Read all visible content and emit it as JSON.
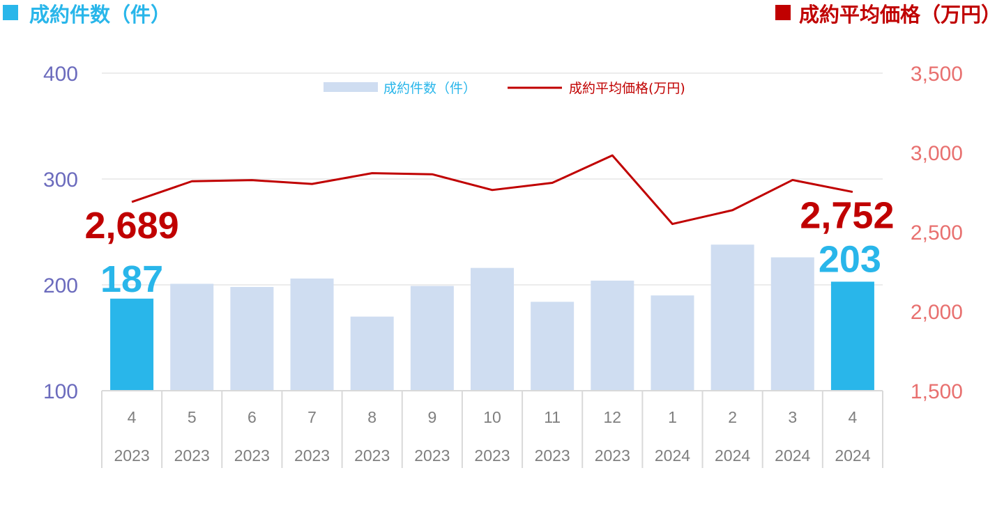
{
  "header": {
    "left_title": "成約件数（件）",
    "right_title": "成約平均価格（万円）"
  },
  "colors": {
    "count_blue": "#29b6ea",
    "count_light": "#cfddf1",
    "price_red": "#c00000",
    "left_axis": "#6b6bbd",
    "right_axis": "#e8706f",
    "grid": "#d9d9d9"
  },
  "chart_data": {
    "type": "bar",
    "categories": [
      "4",
      "5",
      "6",
      "7",
      "8",
      "9",
      "10",
      "11",
      "12",
      "1",
      "2",
      "3",
      "4"
    ],
    "years": [
      "2023",
      "2023",
      "2023",
      "2023",
      "2023",
      "2023",
      "2023",
      "2023",
      "2023",
      "2024",
      "2024",
      "2024",
      "2024"
    ],
    "series": [
      {
        "name": "成約件数（件）",
        "type": "bar",
        "axis": "left",
        "values": [
          187,
          201,
          198,
          206,
          170,
          199,
          216,
          184,
          204,
          190,
          238,
          226,
          203
        ],
        "highlight_indices": [
          0,
          12
        ]
      },
      {
        "name": "成約平均価格(万円)",
        "type": "line",
        "axis": "right",
        "values": [
          2689,
          2819,
          2826,
          2802,
          2870,
          2863,
          2764,
          2809,
          2982,
          2550,
          2637,
          2827,
          2752
        ]
      }
    ],
    "left_axis": {
      "ylim": [
        100,
        400
      ],
      "ticks": [
        "100",
        "200",
        "300",
        "400"
      ]
    },
    "right_axis": {
      "ylim": [
        1500,
        3500
      ],
      "ticks": [
        "1,500",
        "2,000",
        "2,500",
        "3,000",
        "3,500"
      ]
    },
    "annotations": {
      "first_count": "187",
      "last_count": "203",
      "first_price": "2,689",
      "last_price": "2,752"
    },
    "grid": true,
    "legend": "top-center"
  }
}
